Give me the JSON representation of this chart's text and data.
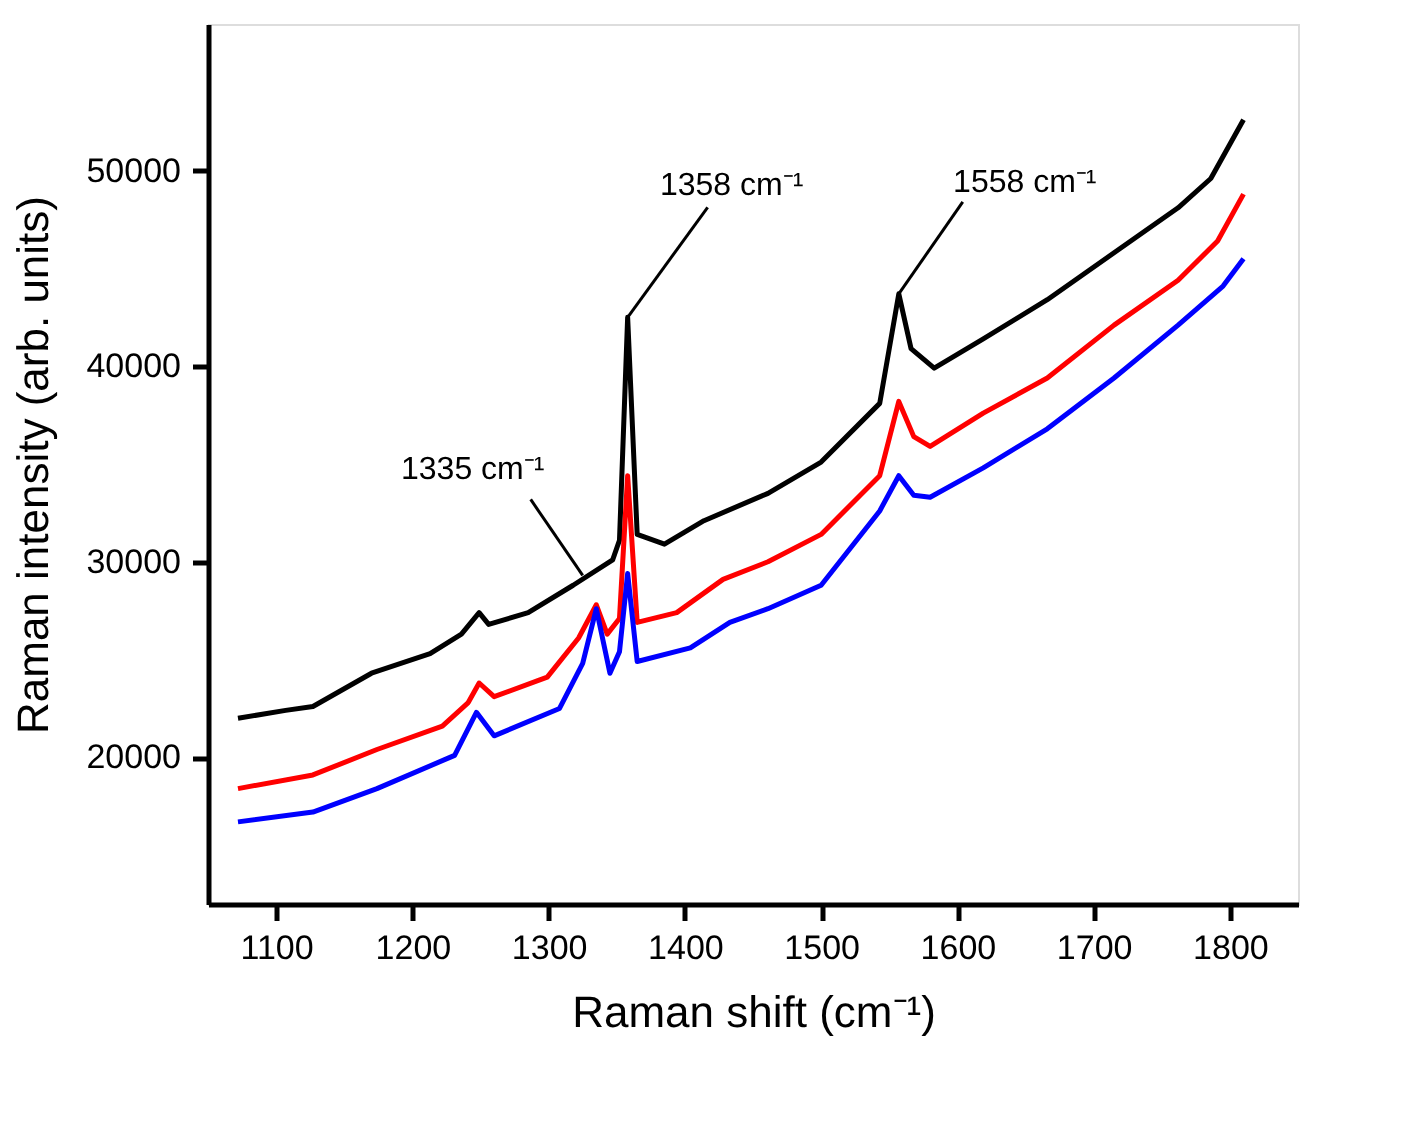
{
  "chart_data": {
    "type": "line",
    "xlabel": "Raman shift (cm⁻¹)",
    "ylabel": "Raman intensity (arb. units)",
    "xlim": [
      1050,
      1850
    ],
    "ylim": [
      12500,
      57500
    ],
    "xticks": [
      1100,
      1200,
      1300,
      1400,
      1500,
      1600,
      1700,
      1800
    ],
    "yticks": [
      20000,
      30000,
      40000,
      50000
    ],
    "grid": false,
    "line_style": "solid",
    "marker": "none",
    "annotations": [
      {
        "text": "1335 cm⁻¹",
        "x": 1325,
        "y": 29300
      },
      {
        "text": "1358 cm⁻¹",
        "x": 1358,
        "y": 42500
      },
      {
        "text": "1558 cm⁻¹",
        "x": 1557,
        "y": 43700
      }
    ],
    "series": [
      {
        "color": "#000000",
        "x": [
          1072,
          1107,
          1127,
          1170,
          1213,
          1236,
          1249,
          1256,
          1285,
          1318,
          1347,
          1352,
          1358,
          1365,
          1385,
          1414,
          1461,
          1500,
          1543,
          1557,
          1566,
          1583,
          1619,
          1666,
          1715,
          1762,
          1786,
          1810
        ],
        "values": [
          22000,
          22400,
          22600,
          24300,
          25300,
          26300,
          27400,
          26800,
          27400,
          28800,
          30100,
          31100,
          42500,
          31400,
          30900,
          32100,
          33500,
          35100,
          38100,
          43700,
          40900,
          39900,
          41400,
          43400,
          45800,
          48100,
          49600,
          52600
        ]
      },
      {
        "color": "#ff0000",
        "x": [
          1072,
          1127,
          1174,
          1222,
          1241,
          1249,
          1260,
          1299,
          1322,
          1335,
          1343,
          1352,
          1358,
          1365,
          1394,
          1428,
          1461,
          1500,
          1543,
          1557,
          1568,
          1580,
          1619,
          1666,
          1715,
          1762,
          1791,
          1810
        ],
        "values": [
          18400,
          19100,
          20400,
          21600,
          22800,
          23800,
          23100,
          24100,
          26100,
          27800,
          26300,
          27100,
          34400,
          26900,
          27400,
          29100,
          30000,
          31400,
          34400,
          38200,
          36400,
          35900,
          37600,
          39400,
          42100,
          44400,
          46400,
          48800
        ]
      },
      {
        "color": "#0000ff",
        "x": [
          1072,
          1127,
          1174,
          1231,
          1247,
          1260,
          1308,
          1325,
          1335,
          1345,
          1352,
          1358,
          1365,
          1404,
          1433,
          1461,
          1500,
          1543,
          1557,
          1568,
          1580,
          1619,
          1666,
          1715,
          1762,
          1795,
          1810
        ],
        "values": [
          16700,
          17200,
          18400,
          20100,
          22300,
          21100,
          22500,
          24800,
          27600,
          24300,
          25400,
          29400,
          24900,
          25600,
          26900,
          27600,
          28800,
          32600,
          34400,
          33400,
          33300,
          34800,
          36800,
          39400,
          42100,
          44100,
          45500
        ]
      }
    ]
  }
}
